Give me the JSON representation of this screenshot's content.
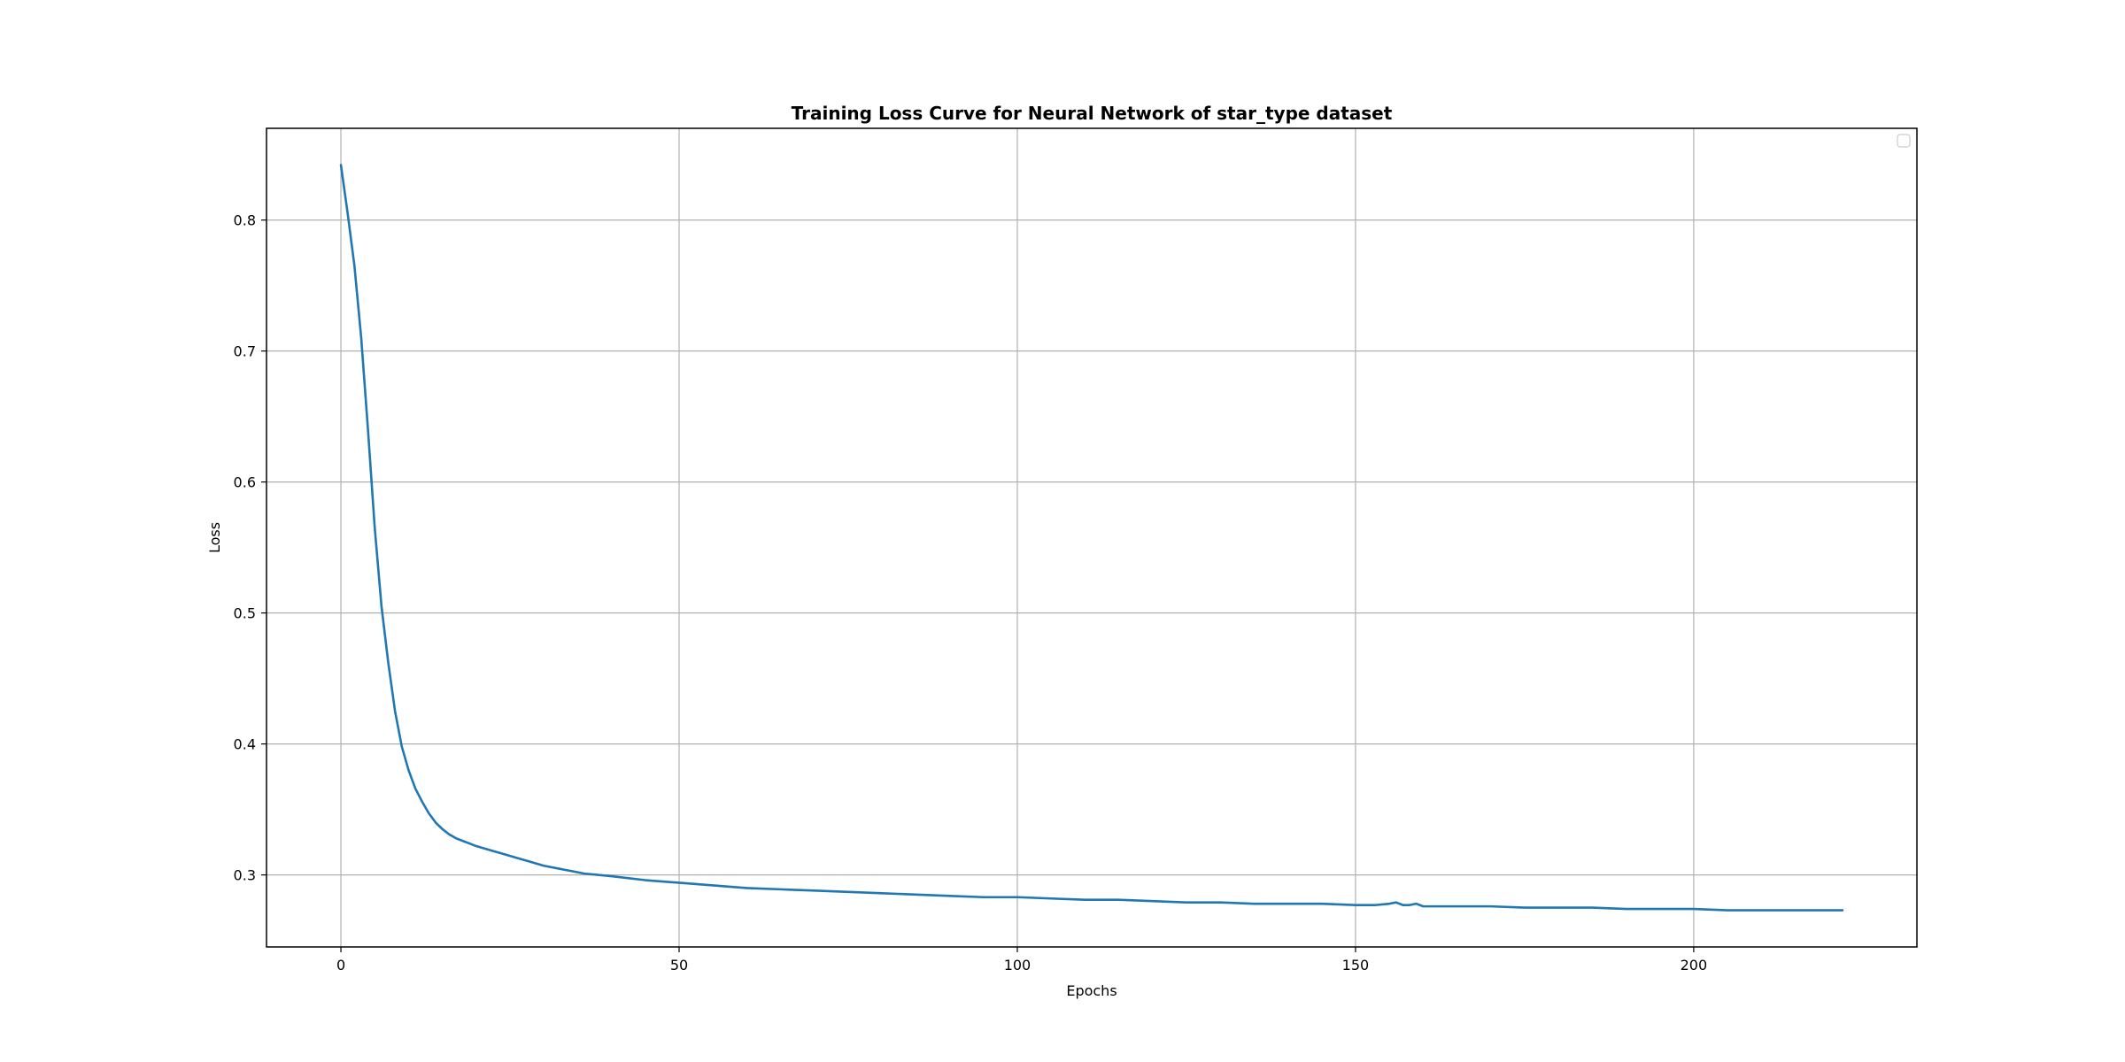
{
  "chart_data": {
    "type": "line",
    "title": "Training Loss Curve for Neural Network of star_type dataset",
    "xlabel": "Epochs",
    "ylabel": "Loss",
    "xlim": [
      -11,
      233
    ],
    "ylim": [
      0.245,
      0.87
    ],
    "xticks": [
      0,
      50,
      100,
      150,
      200
    ],
    "yticks": [
      0.3,
      0.4,
      0.5,
      0.6,
      0.7,
      0.8
    ],
    "xtick_labels": [
      "0",
      "50",
      "100",
      "150",
      "200"
    ],
    "ytick_labels": [
      "0.3",
      "0.4",
      "0.5",
      "0.6",
      "0.7",
      "0.8"
    ],
    "grid": true,
    "legend": {
      "placement": "upper right",
      "entries": []
    },
    "line_color": "#1f77b4",
    "series": [
      {
        "x": [
          0,
          1,
          2,
          3,
          4,
          5,
          6,
          7,
          8,
          9,
          10,
          11,
          12,
          13,
          14,
          15,
          16,
          17,
          18,
          19,
          20,
          22,
          24,
          26,
          28,
          30,
          32,
          34,
          36,
          38,
          40,
          45,
          50,
          55,
          60,
          65,
          70,
          75,
          80,
          85,
          90,
          95,
          100,
          105,
          110,
          115,
          120,
          125,
          130,
          135,
          140,
          145,
          150,
          153,
          155,
          156,
          157,
          158,
          159,
          160,
          165,
          170,
          175,
          180,
          185,
          190,
          195,
          200,
          205,
          210,
          215,
          222
        ],
        "values": [
          0.842,
          0.805,
          0.765,
          0.71,
          0.64,
          0.565,
          0.505,
          0.462,
          0.425,
          0.398,
          0.38,
          0.366,
          0.356,
          0.347,
          0.34,
          0.335,
          0.331,
          0.328,
          0.326,
          0.324,
          0.322,
          0.319,
          0.316,
          0.313,
          0.31,
          0.307,
          0.305,
          0.303,
          0.301,
          0.3,
          0.299,
          0.296,
          0.294,
          0.292,
          0.29,
          0.289,
          0.288,
          0.287,
          0.286,
          0.285,
          0.284,
          0.283,
          0.283,
          0.282,
          0.281,
          0.281,
          0.28,
          0.279,
          0.279,
          0.278,
          0.278,
          0.278,
          0.277,
          0.277,
          0.278,
          0.279,
          0.277,
          0.277,
          0.278,
          0.276,
          0.276,
          0.276,
          0.275,
          0.275,
          0.275,
          0.274,
          0.274,
          0.274,
          0.273,
          0.273,
          0.273,
          0.273
        ]
      }
    ]
  }
}
